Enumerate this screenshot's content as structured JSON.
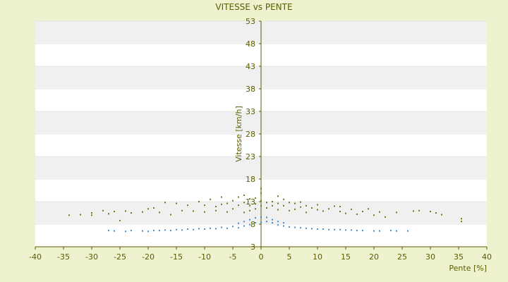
{
  "chart_data": {
    "type": "scatter",
    "title": "VITESSE vs PENTE",
    "xlabel": "Pente [%]",
    "ylabel": "Vitesse [km/h]",
    "xlim": [
      -40,
      40
    ],
    "ylim": [
      3,
      53
    ],
    "x_ticks": [
      -40,
      -35,
      -30,
      -25,
      -20,
      -15,
      -10,
      -5,
      0,
      5,
      10,
      15,
      20,
      25,
      30,
      35,
      40
    ],
    "y_ticks": [
      3,
      8,
      13,
      18,
      23,
      28,
      33,
      38,
      43,
      48,
      53
    ],
    "grid": "horizontal bands",
    "legend": "none",
    "colors": {
      "olive": "#6b7d12",
      "blue": "#3b8fd9",
      "band": "#f0f0f0",
      "axis": "#5c5c00"
    },
    "series": [
      {
        "color": "olive",
        "points": [
          [
            -34,
            10.0
          ],
          [
            -32,
            10.1
          ],
          [
            -30,
            10.5
          ],
          [
            -30,
            10.0
          ],
          [
            -28,
            11.0
          ],
          [
            -27,
            10.3
          ],
          [
            -26,
            10.8
          ],
          [
            -25,
            8.8
          ],
          [
            -24,
            10.9
          ],
          [
            -23,
            10.5
          ],
          [
            -21,
            10.7
          ],
          [
            -20,
            11.4
          ],
          [
            -19,
            11.6
          ],
          [
            -18,
            10.6
          ],
          [
            -17,
            12.8
          ],
          [
            -16,
            10.1
          ],
          [
            -15,
            12.6
          ],
          [
            -14,
            11.0
          ],
          [
            -13,
            12.2
          ],
          [
            -12,
            10.9
          ],
          [
            -11,
            13.0
          ],
          [
            -10,
            10.7
          ],
          [
            -10,
            12.2
          ],
          [
            -9,
            13.5
          ],
          [
            -8,
            11.0
          ],
          [
            -8,
            11.9
          ],
          [
            -7,
            12.4
          ],
          [
            -7,
            14.0
          ],
          [
            -6,
            10.7
          ],
          [
            -6,
            12.6
          ],
          [
            -5,
            11.4
          ],
          [
            -5,
            13.2
          ],
          [
            -4,
            12.2
          ],
          [
            -4,
            14.0
          ],
          [
            -3,
            10.6
          ],
          [
            -3,
            12.8
          ],
          [
            -3,
            14.4
          ],
          [
            -2,
            12.1
          ],
          [
            -2,
            13.6
          ],
          [
            -2,
            11.0
          ],
          [
            -1,
            12.5
          ],
          [
            -1,
            13.8
          ],
          [
            -1,
            11.4
          ],
          [
            0,
            12.1
          ],
          [
            0,
            13.2
          ],
          [
            0,
            14.9
          ],
          [
            0,
            15.9
          ],
          [
            1,
            12.8
          ],
          [
            1,
            11.6
          ],
          [
            2,
            13.0
          ],
          [
            2,
            12.1
          ],
          [
            3,
            12.6
          ],
          [
            3,
            14.2
          ],
          [
            3,
            11.2
          ],
          [
            4,
            12.1
          ],
          [
            4,
            13.5
          ],
          [
            5,
            11.0
          ],
          [
            5,
            12.8
          ],
          [
            6,
            12.6
          ],
          [
            6,
            11.3
          ],
          [
            7,
            11.8
          ],
          [
            7,
            12.9
          ],
          [
            8,
            10.6
          ],
          [
            8,
            12.1
          ],
          [
            9,
            11.6
          ],
          [
            10,
            11.2
          ],
          [
            10,
            12.3
          ],
          [
            11,
            10.9
          ],
          [
            12,
            11.4
          ],
          [
            13,
            12.0
          ],
          [
            14,
            10.8
          ],
          [
            14,
            11.9
          ],
          [
            15,
            10.4
          ],
          [
            16,
            11.3
          ],
          [
            17,
            10.2
          ],
          [
            18,
            10.8
          ],
          [
            19,
            11.4
          ],
          [
            20,
            10.0
          ],
          [
            21,
            10.7
          ],
          [
            22,
            9.6
          ],
          [
            24,
            10.6
          ],
          [
            27,
            10.9
          ],
          [
            28,
            11.0
          ],
          [
            30,
            10.8
          ],
          [
            31,
            10.5
          ],
          [
            32,
            10.1
          ],
          [
            35.5,
            9.2
          ],
          [
            35.5,
            8.6
          ]
        ]
      },
      {
        "color": "blue",
        "points": [
          [
            -27,
            6.6
          ],
          [
            -26,
            6.5
          ],
          [
            -24,
            6.4
          ],
          [
            -23,
            6.6
          ],
          [
            -21,
            6.5
          ],
          [
            -20,
            6.4
          ],
          [
            -19,
            6.6
          ],
          [
            -18,
            6.6
          ],
          [
            -17,
            6.7
          ],
          [
            -16,
            6.6
          ],
          [
            -15,
            6.8
          ],
          [
            -14,
            6.7
          ],
          [
            -13,
            6.9
          ],
          [
            -12,
            6.8
          ],
          [
            -11,
            7.0
          ],
          [
            -10,
            6.9
          ],
          [
            -9,
            7.1
          ],
          [
            -8,
            7.0
          ],
          [
            -7,
            7.3
          ],
          [
            -6,
            7.1
          ],
          [
            -5,
            7.5
          ],
          [
            -4,
            7.2
          ],
          [
            -4,
            8.2
          ],
          [
            -3,
            7.6
          ],
          [
            -3,
            8.6
          ],
          [
            -2,
            7.9
          ],
          [
            -2,
            9.0
          ],
          [
            -1,
            8.3
          ],
          [
            -1,
            9.4
          ],
          [
            0,
            8.4
          ],
          [
            0,
            9.6
          ],
          [
            1,
            8.6
          ],
          [
            1,
            9.5
          ],
          [
            2,
            8.3
          ],
          [
            2,
            9.0
          ],
          [
            3,
            7.8
          ],
          [
            3,
            8.6
          ],
          [
            4,
            7.6
          ],
          [
            4,
            8.3
          ],
          [
            5,
            7.4
          ],
          [
            6,
            7.3
          ],
          [
            7,
            7.2
          ],
          [
            8,
            7.1
          ],
          [
            9,
            7.0
          ],
          [
            10,
            6.9
          ],
          [
            11,
            6.9
          ],
          [
            12,
            6.8
          ],
          [
            13,
            6.8
          ],
          [
            14,
            6.8
          ],
          [
            15,
            6.7
          ],
          [
            16,
            6.7
          ],
          [
            17,
            6.6
          ],
          [
            18,
            6.6
          ],
          [
            20,
            6.5
          ],
          [
            21,
            6.5
          ],
          [
            23,
            6.6
          ],
          [
            24,
            6.5
          ],
          [
            26,
            6.5
          ]
        ]
      }
    ]
  }
}
